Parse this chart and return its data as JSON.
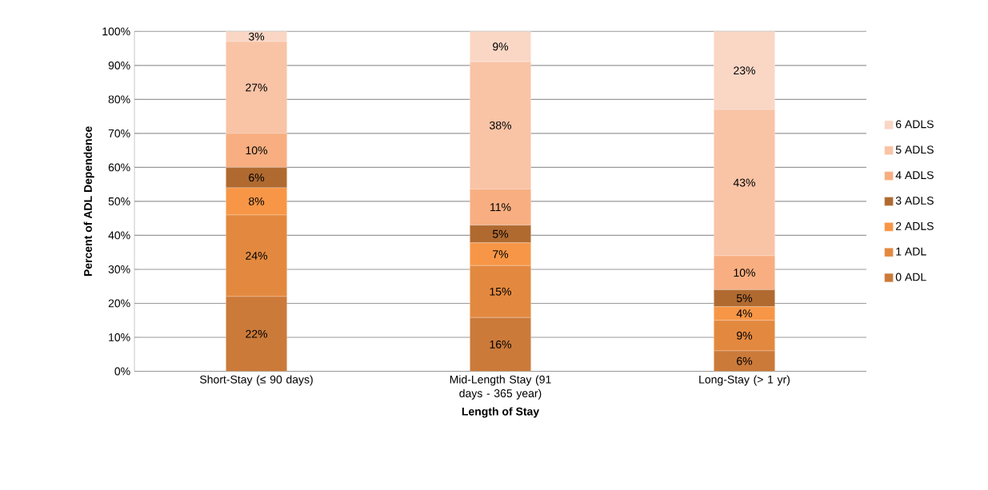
{
  "chart_data": {
    "type": "bar",
    "stacked": true,
    "xlabel": "Length of Stay",
    "ylabel": "Percent of ADL Dependence",
    "categories": [
      "Short-Stay  (≤ 90 days)",
      "Mid-Length Stay (91 days - 365 year)",
      "Long-Stay (> 1 yr)"
    ],
    "series": [
      {
        "name": "0 ADL",
        "color": "#cb7a3a",
        "values": [
          22,
          15.8,
          6
        ],
        "value_labels": [
          "22%",
          "16%",
          "6%"
        ]
      },
      {
        "name": "1 ADL",
        "color": "#e3893f",
        "values": [
          24,
          15.3,
          9
        ],
        "value_labels": [
          "24%",
          "15%",
          "9%"
        ]
      },
      {
        "name": "2 ADLS",
        "color": "#f79646",
        "values": [
          8,
          6.7,
          4
        ],
        "value_labels": [
          "8%",
          "7%",
          "4%"
        ]
      },
      {
        "name": "3 ADLS",
        "color": "#b06a30",
        "values": [
          6,
          5.2,
          5
        ],
        "value_labels": [
          "6%",
          "5%",
          "5%"
        ]
      },
      {
        "name": "4 ADLS",
        "color": "#f8ae80",
        "values": [
          10,
          10.6,
          10
        ],
        "value_labels": [
          "10%",
          "11%",
          "10%"
        ]
      },
      {
        "name": "5 ADLS",
        "color": "#f9c3a6",
        "values": [
          27,
          37.5,
          43
        ],
        "value_labels": [
          "27%",
          "38%",
          "43%"
        ]
      },
      {
        "name": "6 ADLS",
        "color": "#fad6c5",
        "values": [
          3,
          8.9,
          23
        ],
        "value_labels": [
          "3%",
          "9%",
          "23%"
        ]
      }
    ],
    "ylim": [
      0,
      100
    ],
    "yticks": [
      {
        "value": 0,
        "label": "0%"
      },
      {
        "value": 10,
        "label": "10%"
      },
      {
        "value": 20,
        "label": "20%"
      },
      {
        "value": 30,
        "label": "30%"
      },
      {
        "value": 40,
        "label": "40%"
      },
      {
        "value": 50,
        "label": "50%"
      },
      {
        "value": 60,
        "label": "60%"
      },
      {
        "value": 70,
        "label": "70%"
      },
      {
        "value": 80,
        "label": "80%"
      },
      {
        "value": 90,
        "label": "90%"
      },
      {
        "value": 100,
        "label": "100%"
      }
    ],
    "grid": "y",
    "legend": "right"
  }
}
